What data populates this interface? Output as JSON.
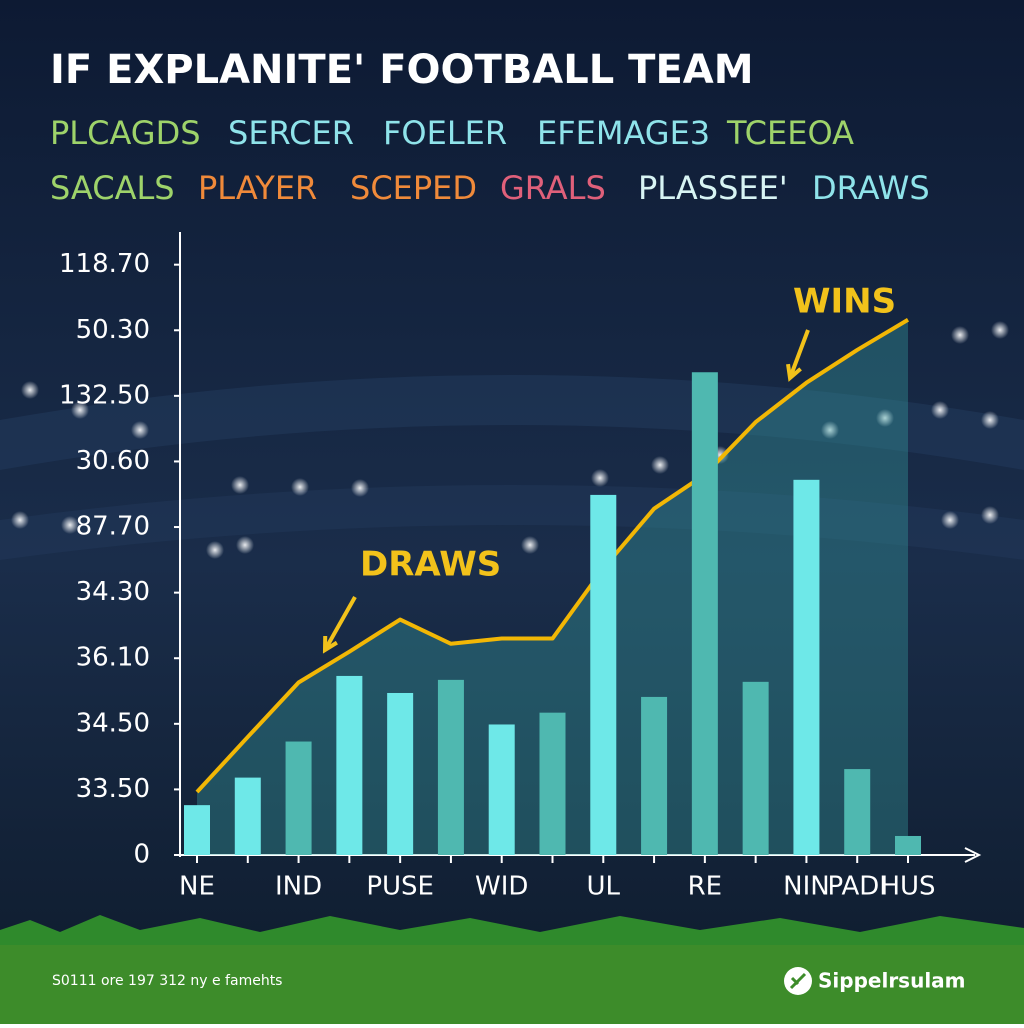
{
  "chart_data": {
    "type": "bar",
    "title": "IF EXPLANITE' FOOTBALL TEAM",
    "header_labels": [
      [
        {
          "text": "PLCAGDS",
          "color": "#9ed36a"
        },
        {
          "text": "SERCER",
          "color": "#8fe3ea"
        },
        {
          "text": "FOELER",
          "color": "#8fe3ea"
        },
        {
          "text": "EFEMAGE3",
          "color": "#8fe3ea"
        },
        {
          "text": "TCEEOA",
          "color": "#9ed36a"
        }
      ],
      [
        {
          "text": "SACALS",
          "color": "#9ed36a"
        },
        {
          "text": "PLAYER",
          "color": "#f08a3a"
        },
        {
          "text": "SCEPED",
          "color": "#f08a3a"
        },
        {
          "text": "GRALS",
          "color": "#e0607a"
        },
        {
          "text": "PLASSEE'",
          "color": "#d8f4f4"
        },
        {
          "text": "DRAWS",
          "color": "#8fe3ea"
        }
      ]
    ],
    "categories": [
      "NE",
      null,
      "IND",
      null,
      "PUSE",
      null,
      "WID",
      null,
      "UL",
      null,
      "RE",
      null,
      "NIN",
      "PADI",
      "HUS"
    ],
    "series": [
      {
        "type": "bar",
        "colors": [
          "#6ee8e8",
          "#6ee8e8",
          "#4fb8b0",
          "#6ee8e8",
          "#6ee8e8",
          "#4fb8b0",
          "#6ee8e8",
          "#4fb8b0",
          "#6ee8e8",
          "#4fb8b0",
          "#4fb8b0",
          "#4fb8b0",
          "#6ee8e8",
          "#4fb8b0",
          "#4fb8b0"
        ],
        "values": [
          0.76,
          1.18,
          1.73,
          2.73,
          2.47,
          2.67,
          1.99,
          2.17,
          5.49,
          2.41,
          7.36,
          2.64,
          5.72,
          1.31,
          0.29
        ]
      },
      {
        "type": "line",
        "color": "#f2b705",
        "values": [
          0.96,
          1.8,
          2.63,
          3.1,
          3.59,
          3.22,
          3.3,
          3.3,
          4.37,
          5.28,
          5.8,
          6.6,
          7.2,
          7.7,
          8.16
        ]
      }
    ],
    "annotations": [
      {
        "text": "DRAWS",
        "color": "#f2c21b"
      },
      {
        "text": "WINS",
        "color": "#f2c21b"
      }
    ],
    "ylim": [
      0,
      9.3
    ],
    "yticks": [
      {
        "value": 0,
        "label": "0"
      },
      {
        "value": 1,
        "label": "33.50"
      },
      {
        "value": 2,
        "label": "34.50"
      },
      {
        "value": 3,
        "label": "36.10"
      },
      {
        "value": 4,
        "label": "34.30"
      },
      {
        "value": 5,
        "label": "87.70"
      },
      {
        "value": 6,
        "label": "30.60"
      },
      {
        "value": 7,
        "label": "132.50"
      },
      {
        "value": 8,
        "label": "50.30"
      },
      {
        "value": 9,
        "label": "118.70"
      }
    ],
    "footer": "S0111 ore 197 312 ny e famehts",
    "brand": "Sippelrsulam"
  }
}
